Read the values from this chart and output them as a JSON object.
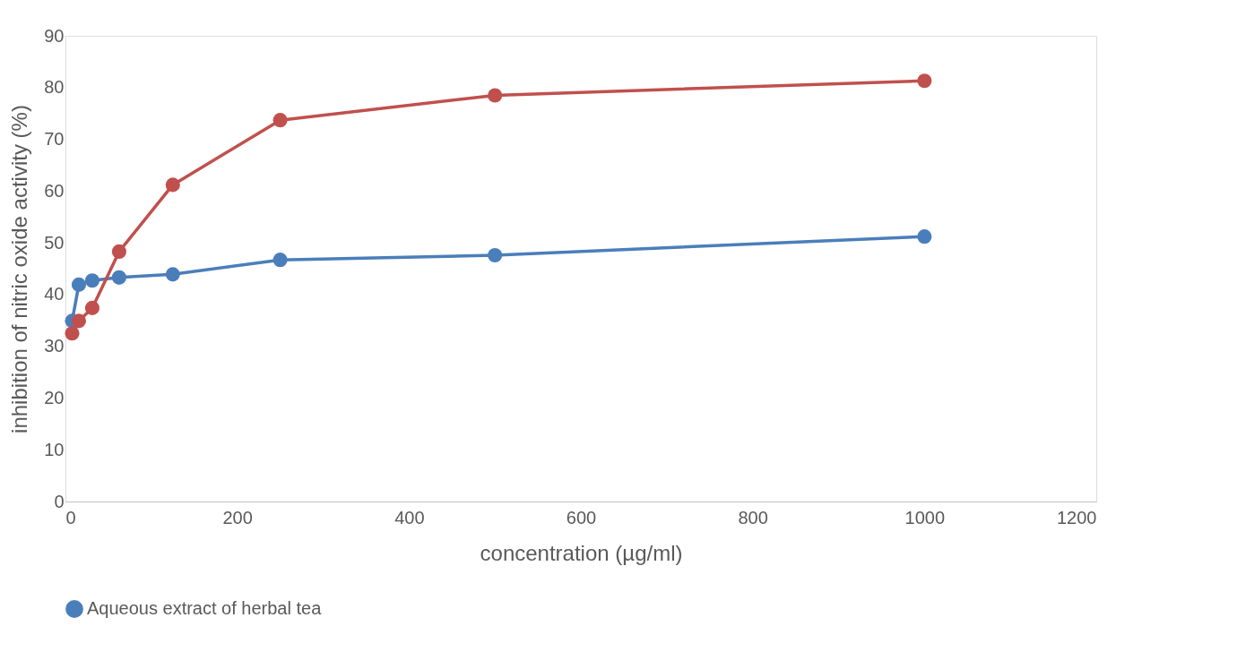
{
  "chart_data": {
    "type": "line",
    "xlabel": "concentration (µg/ml)",
    "ylabel": "inhibition of nitric oxide activity (%)",
    "x": [
      7.8,
      15.6,
      31.25,
      62.5,
      125,
      250,
      500,
      1000
    ],
    "series": [
      {
        "name": "Aqueous extract of herbal tea",
        "color": "#4a7ebb",
        "values": [
          34.9,
          41.9,
          42.7,
          43.3,
          43.9,
          46.7,
          47.6,
          51.2
        ]
      },
      {
        "color": "#c0504d",
        "values": [
          32.5,
          34.9,
          37.4,
          48.3,
          61.2,
          73.7,
          78.5,
          81.3
        ]
      }
    ],
    "xlim": [
      0,
      1200
    ],
    "xticks": [
      0,
      200,
      400,
      600,
      800,
      1000,
      1200
    ],
    "ylim": [
      0,
      90
    ],
    "yticks": [
      0,
      10,
      20,
      30,
      40,
      50,
      60,
      70,
      80,
      90
    ],
    "grid": false,
    "legend": "bottom",
    "marker": "circle",
    "line_style": "solid"
  }
}
